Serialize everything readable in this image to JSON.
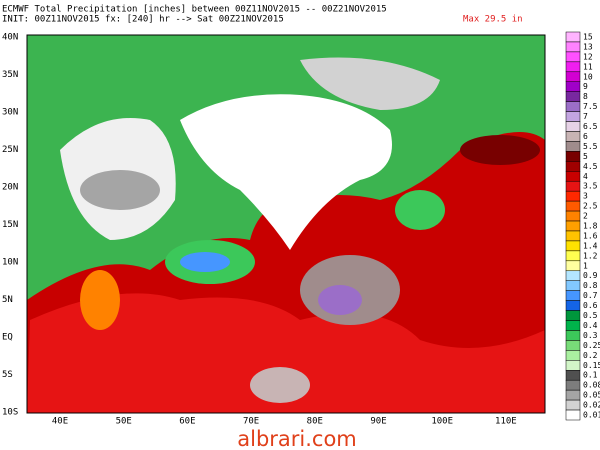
{
  "header": {
    "line1": "ECMWF Total Precipitation [inches] between 00Z11NOV2015 -- 00Z21NOV2015",
    "line2": "INIT: 00Z11NOV2015 fx: [240] hr --> Sat 00Z21NOV2015",
    "max": "Max 29.5 in"
  },
  "axes": {
    "lat_labels": [
      "40N",
      "35N",
      "30N",
      "25N",
      "20N",
      "15N",
      "10N",
      "5N",
      "EQ",
      "5S",
      "10S"
    ],
    "lon_labels": [
      "40E",
      "50E",
      "60E",
      "70E",
      "80E",
      "90E",
      "100E",
      "110E"
    ]
  },
  "colorbar": [
    {
      "label": "15",
      "color": "#ffb4ff"
    },
    {
      "label": "13",
      "color": "#ff82ff"
    },
    {
      "label": "12",
      "color": "#ff50ff"
    },
    {
      "label": "11",
      "color": "#f01ef0"
    },
    {
      "label": "10",
      "color": "#d200d2"
    },
    {
      "label": "9",
      "color": "#a000c8"
    },
    {
      "label": "8",
      "color": "#7828a0"
    },
    {
      "label": "7.5",
      "color": "#9b6ec8"
    },
    {
      "label": "7",
      "color": "#c3a5e1"
    },
    {
      "label": "6.5",
      "color": "#e6d2e6"
    },
    {
      "label": "6",
      "color": "#c8b4b4"
    },
    {
      "label": "5.5",
      "color": "#a08c8c"
    },
    {
      "label": "5",
      "color": "#780000"
    },
    {
      "label": "4.5",
      "color": "#a00000"
    },
    {
      "label": "4",
      "color": "#c80000"
    },
    {
      "label": "3.5",
      "color": "#e61414"
    },
    {
      "label": "3",
      "color": "#ff2800"
    },
    {
      "label": "2.5",
      "color": "#ff5a00"
    },
    {
      "label": "2",
      "color": "#ff8200"
    },
    {
      "label": "1.8",
      "color": "#ffa000"
    },
    {
      "label": "1.6",
      "color": "#ffc300"
    },
    {
      "label": "1.4",
      "color": "#ffe100"
    },
    {
      "label": "1.2",
      "color": "#ffff50"
    },
    {
      "label": "1",
      "color": "#ffffa0"
    },
    {
      "label": "0.9",
      "color": "#b4e6ff"
    },
    {
      "label": "0.8",
      "color": "#82c8ff"
    },
    {
      "label": "0.7",
      "color": "#4696ff"
    },
    {
      "label": "0.6",
      "color": "#1464e6"
    },
    {
      "label": "0.5",
      "color": "#00963c"
    },
    {
      "label": "0.4",
      "color": "#00b44b"
    },
    {
      "label": "0.3",
      "color": "#3cc85a"
    },
    {
      "label": "0.25",
      "color": "#78dc78"
    },
    {
      "label": "0.2",
      "color": "#aaf0a0"
    },
    {
      "label": "0.15",
      "color": "#d2f5c8"
    },
    {
      "label": "0.1",
      "color": "#505050"
    },
    {
      "label": "0.08",
      "color": "#7d7d7d"
    },
    {
      "label": "0.05",
      "color": "#a5a5a5"
    },
    {
      "label": "0.02",
      "color": "#d2d2d2"
    },
    {
      "label": "0.01",
      "color": "#ffffff"
    }
  ],
  "watermark": "albrari.com"
}
